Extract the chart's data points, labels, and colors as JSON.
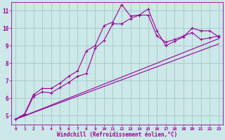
{
  "background_color": "#cce8e8",
  "grid_color": "#aacccc",
  "line_color": "#990099",
  "marker_color": "#990099",
  "xlabel": "Windchill (Refroidissement éolien,°C)",
  "xlabel_color": "#990099",
  "tick_color": "#990099",
  "ylim": [
    4.5,
    11.5
  ],
  "xlim": [
    -0.5,
    23.5
  ],
  "yticks": [
    5,
    6,
    7,
    8,
    9,
    10,
    11
  ],
  "xticks": [
    0,
    1,
    2,
    3,
    4,
    5,
    6,
    7,
    8,
    9,
    10,
    11,
    12,
    13,
    14,
    15,
    16,
    17,
    18,
    19,
    20,
    21,
    22,
    23
  ],
  "series": {
    "line1_x": [
      0,
      1,
      2,
      3,
      4,
      5,
      6,
      7,
      8,
      9,
      10,
      11,
      12,
      13,
      14,
      15,
      16,
      17,
      18,
      19,
      20,
      21,
      22,
      23
    ],
    "line1_y": [
      4.8,
      5.1,
      6.2,
      6.55,
      6.55,
      6.85,
      7.25,
      7.55,
      8.7,
      9.0,
      10.15,
      10.35,
      11.35,
      10.7,
      10.75,
      11.1,
      9.85,
      9.0,
      9.25,
      9.5,
      10.0,
      9.85,
      9.85,
      9.5
    ],
    "line2_x": [
      0,
      1,
      2,
      3,
      4,
      5,
      6,
      7,
      8,
      9,
      10,
      11,
      12,
      13,
      14,
      15,
      16,
      17,
      18,
      19,
      20,
      21,
      22,
      23
    ],
    "line2_y": [
      4.8,
      5.05,
      6.1,
      6.35,
      6.3,
      6.6,
      6.9,
      7.25,
      7.4,
      8.85,
      9.3,
      10.25,
      10.25,
      10.55,
      10.75,
      10.75,
      9.55,
      9.2,
      9.35,
      9.55,
      9.75,
      9.35,
      9.45,
      9.55
    ],
    "line3_x": [
      0,
      23
    ],
    "line3_y": [
      4.8,
      9.4
    ],
    "line4_x": [
      0,
      23
    ],
    "line4_y": [
      4.8,
      9.1
    ]
  }
}
